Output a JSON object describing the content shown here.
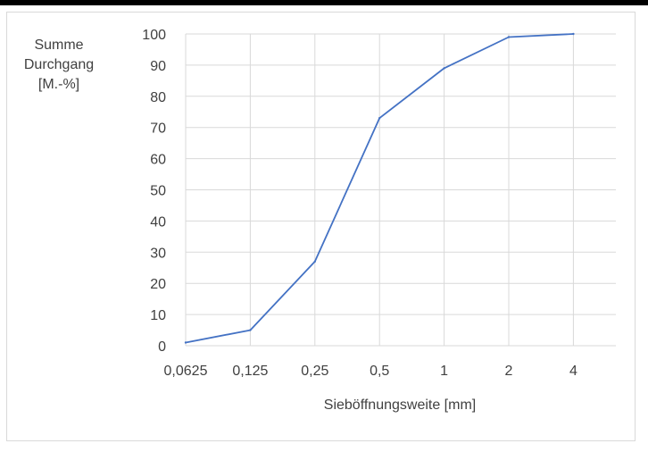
{
  "chart_data": {
    "type": "line",
    "categories": [
      "0,0625",
      "0,125",
      "0,25",
      "0,5",
      "1",
      "2",
      "4"
    ],
    "series": [
      {
        "values": [
          1,
          5,
          27,
          73,
          89,
          99,
          100
        ]
      }
    ],
    "ylabel_lines": [
      "Summe",
      "Durchgang",
      "[M.-%]"
    ],
    "xlabel": "Sieböffnungsweite [mm]",
    "ylim": [
      0,
      100
    ],
    "yticks": [
      "0",
      "10",
      "20",
      "30",
      "40",
      "50",
      "60",
      "70",
      "80",
      "90",
      "100"
    ],
    "grid": true,
    "colors": {
      "series": "#4472c4",
      "grid": "#d9d9d9",
      "text": "#404040"
    }
  }
}
